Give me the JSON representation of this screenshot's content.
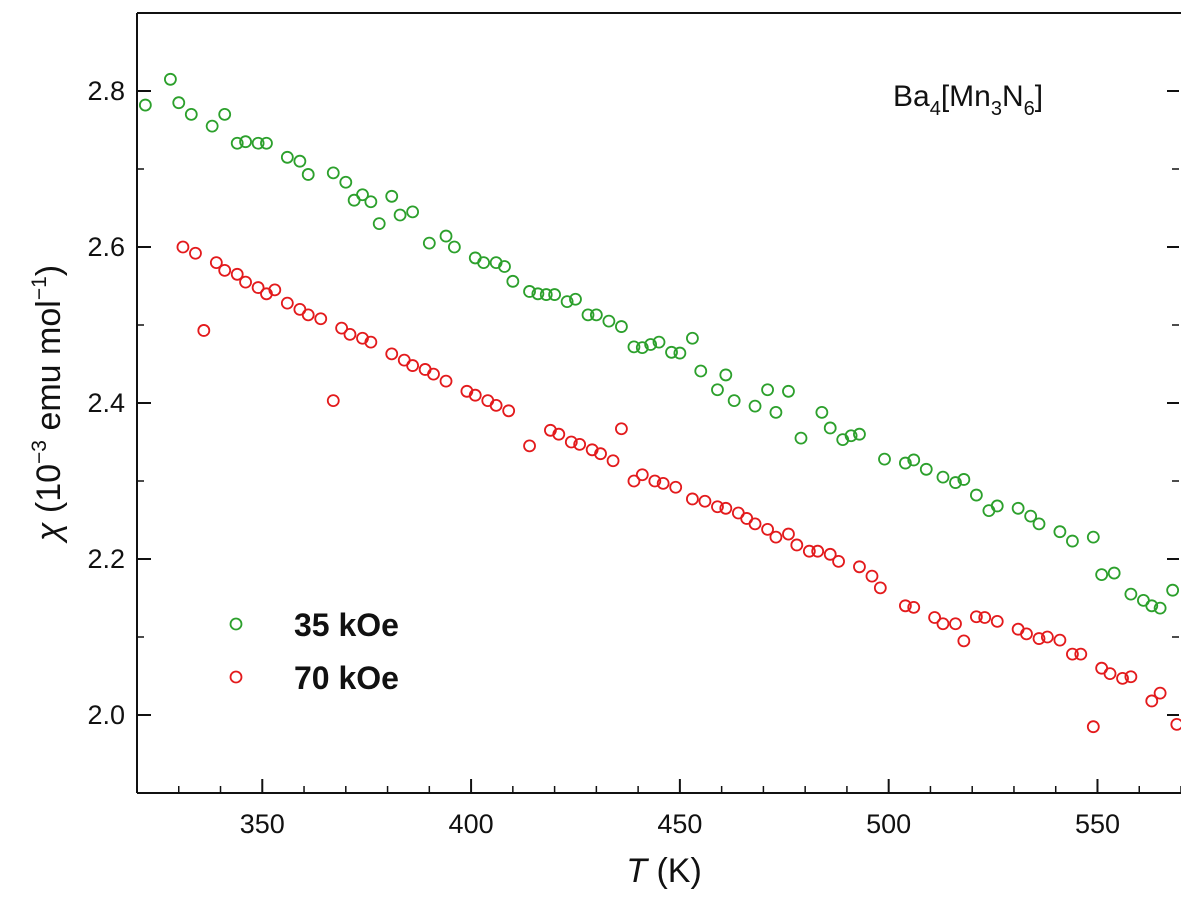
{
  "chart_data": {
    "type": "scatter",
    "xlabel": {
      "italic": "T",
      "rest": " (K)"
    },
    "ylabel": {
      "chi": "χ",
      "pre": " (10",
      "exp1": "−3",
      "mid": " emu mol",
      "exp2": "−1",
      "post": ")"
    },
    "annotation": {
      "base": "Ba",
      "s1": "4",
      "a": "[Mn",
      "s2": "3",
      "b": "N",
      "s3": "6",
      "c": "]"
    },
    "xlim": [
      320,
      570
    ],
    "ylim": [
      1.9,
      2.9
    ],
    "x_ticks": [
      {
        "v": 350,
        "label": "350"
      },
      {
        "v": 400,
        "label": "400"
      },
      {
        "v": 450,
        "label": "450"
      },
      {
        "v": 500,
        "label": "500"
      },
      {
        "v": 550,
        "label": "550"
      }
    ],
    "y_ticks": [
      {
        "v": 2.0,
        "label": "2.0"
      },
      {
        "v": 2.2,
        "label": "2.2"
      },
      {
        "v": 2.4,
        "label": "2.4"
      },
      {
        "v": 2.6,
        "label": "2.6"
      },
      {
        "v": 2.8,
        "label": "2.8"
      }
    ],
    "grid": false,
    "legend_position": "bottom-left",
    "series": [
      {
        "name": "35 kOe",
        "color": "#2ca02c",
        "points": [
          [
            322,
            2.782
          ],
          [
            328,
            2.815
          ],
          [
            330,
            2.785
          ],
          [
            333,
            2.77
          ],
          [
            338,
            2.755
          ],
          [
            341,
            2.77
          ],
          [
            344,
            2.733
          ],
          [
            346,
            2.735
          ],
          [
            349,
            2.733
          ],
          [
            351,
            2.733
          ],
          [
            356,
            2.715
          ],
          [
            359,
            2.71
          ],
          [
            361,
            2.693
          ],
          [
            367,
            2.695
          ],
          [
            370,
            2.683
          ],
          [
            372,
            2.66
          ],
          [
            374,
            2.667
          ],
          [
            376,
            2.658
          ],
          [
            378,
            2.63
          ],
          [
            381,
            2.665
          ],
          [
            383,
            2.641
          ],
          [
            386,
            2.645
          ],
          [
            390,
            2.605
          ],
          [
            394,
            2.614
          ],
          [
            396,
            2.6
          ],
          [
            401,
            2.586
          ],
          [
            403,
            2.58
          ],
          [
            406,
            2.58
          ],
          [
            408,
            2.575
          ],
          [
            410,
            2.556
          ],
          [
            414,
            2.543
          ],
          [
            416,
            2.54
          ],
          [
            418,
            2.539
          ],
          [
            420,
            2.539
          ],
          [
            423,
            2.53
          ],
          [
            425,
            2.533
          ],
          [
            428,
            2.513
          ],
          [
            430,
            2.513
          ],
          [
            433,
            2.505
          ],
          [
            436,
            2.498
          ],
          [
            439,
            2.472
          ],
          [
            441,
            2.471
          ],
          [
            443,
            2.475
          ],
          [
            445,
            2.478
          ],
          [
            448,
            2.465
          ],
          [
            450,
            2.464
          ],
          [
            453,
            2.483
          ],
          [
            455,
            2.441
          ],
          [
            459,
            2.417
          ],
          [
            461,
            2.436
          ],
          [
            463,
            2.403
          ],
          [
            468,
            2.396
          ],
          [
            471,
            2.417
          ],
          [
            473,
            2.388
          ],
          [
            476,
            2.415
          ],
          [
            479,
            2.355
          ],
          [
            484,
            2.388
          ],
          [
            486,
            2.368
          ],
          [
            489,
            2.353
          ],
          [
            491,
            2.358
          ],
          [
            493,
            2.36
          ],
          [
            499,
            2.328
          ],
          [
            504,
            2.323
          ],
          [
            506,
            2.327
          ],
          [
            509,
            2.315
          ],
          [
            513,
            2.305
          ],
          [
            516,
            2.298
          ],
          [
            518,
            2.302
          ],
          [
            521,
            2.282
          ],
          [
            524,
            2.262
          ],
          [
            526,
            2.268
          ],
          [
            531,
            2.265
          ],
          [
            534,
            2.255
          ],
          [
            536,
            2.245
          ],
          [
            541,
            2.235
          ],
          [
            544,
            2.223
          ],
          [
            549,
            2.228
          ],
          [
            551,
            2.18
          ],
          [
            554,
            2.182
          ],
          [
            558,
            2.155
          ],
          [
            561,
            2.147
          ],
          [
            563,
            2.14
          ],
          [
            565,
            2.137
          ],
          [
            568,
            2.16
          ]
        ]
      },
      {
        "name": "70 kOe",
        "color": "#e31a1c",
        "points": [
          [
            331,
            2.6
          ],
          [
            334,
            2.592
          ],
          [
            336,
            2.493
          ],
          [
            339,
            2.58
          ],
          [
            341,
            2.57
          ],
          [
            344,
            2.565
          ],
          [
            346,
            2.555
          ],
          [
            349,
            2.548
          ],
          [
            351,
            2.54
          ],
          [
            353,
            2.545
          ],
          [
            356,
            2.528
          ],
          [
            359,
            2.52
          ],
          [
            361,
            2.513
          ],
          [
            364,
            2.508
          ],
          [
            367,
            2.403
          ],
          [
            369,
            2.496
          ],
          [
            371,
            2.488
          ],
          [
            374,
            2.483
          ],
          [
            376,
            2.478
          ],
          [
            381,
            2.463
          ],
          [
            384,
            2.455
          ],
          [
            386,
            2.448
          ],
          [
            389,
            2.443
          ],
          [
            391,
            2.437
          ],
          [
            394,
            2.428
          ],
          [
            399,
            2.415
          ],
          [
            401,
            2.41
          ],
          [
            404,
            2.403
          ],
          [
            406,
            2.397
          ],
          [
            409,
            2.39
          ],
          [
            414,
            2.345
          ],
          [
            419,
            2.365
          ],
          [
            421,
            2.36
          ],
          [
            424,
            2.35
          ],
          [
            426,
            2.347
          ],
          [
            429,
            2.34
          ],
          [
            431,
            2.335
          ],
          [
            434,
            2.326
          ],
          [
            436,
            2.367
          ],
          [
            439,
            2.3
          ],
          [
            441,
            2.308
          ],
          [
            444,
            2.3
          ],
          [
            446,
            2.297
          ],
          [
            449,
            2.292
          ],
          [
            453,
            2.277
          ],
          [
            456,
            2.274
          ],
          [
            459,
            2.267
          ],
          [
            461,
            2.265
          ],
          [
            464,
            2.259
          ],
          [
            466,
            2.252
          ],
          [
            468,
            2.245
          ],
          [
            471,
            2.238
          ],
          [
            473,
            2.228
          ],
          [
            476,
            2.232
          ],
          [
            478,
            2.218
          ],
          [
            481,
            2.21
          ],
          [
            483,
            2.21
          ],
          [
            486,
            2.206
          ],
          [
            488,
            2.197
          ],
          [
            493,
            2.19
          ],
          [
            496,
            2.178
          ],
          [
            498,
            2.163
          ],
          [
            504,
            2.14
          ],
          [
            506,
            2.138
          ],
          [
            511,
            2.125
          ],
          [
            513,
            2.117
          ],
          [
            516,
            2.117
          ],
          [
            518,
            2.095
          ],
          [
            521,
            2.126
          ],
          [
            523,
            2.125
          ],
          [
            526,
            2.12
          ],
          [
            531,
            2.11
          ],
          [
            533,
            2.104
          ],
          [
            536,
            2.098
          ],
          [
            538,
            2.1
          ],
          [
            541,
            2.096
          ],
          [
            544,
            2.078
          ],
          [
            546,
            2.078
          ],
          [
            549,
            1.985
          ],
          [
            551,
            2.06
          ],
          [
            553,
            2.053
          ],
          [
            556,
            2.047
          ],
          [
            558,
            2.049
          ],
          [
            563,
            2.018
          ],
          [
            565,
            2.028
          ],
          [
            569,
            1.988
          ]
        ]
      }
    ]
  }
}
